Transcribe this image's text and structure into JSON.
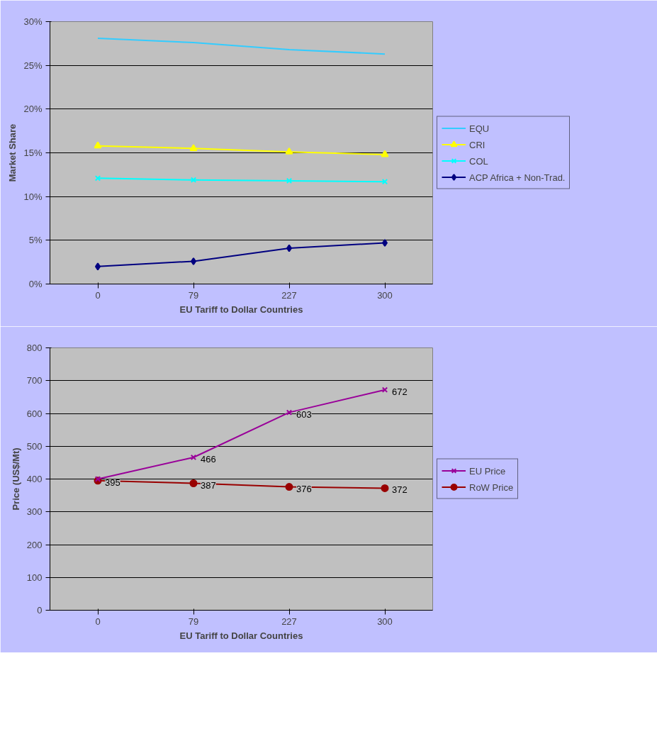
{
  "chart_data": [
    {
      "type": "line",
      "categories": [
        "0",
        "79",
        "227",
        "300"
      ],
      "xlabel": "EU Tariff to Dollar Countries",
      "ylabel": "Market Share",
      "ylim": [
        0,
        30
      ],
      "yticks": [
        {
          "value": 0,
          "label": "0%"
        },
        {
          "value": 5,
          "label": "5%"
        },
        {
          "value": 10,
          "label": "10%"
        },
        {
          "value": 15,
          "label": "15%"
        },
        {
          "value": 20,
          "label": "20%"
        },
        {
          "value": 25,
          "label": "25%"
        },
        {
          "value": 30,
          "label": "30%"
        }
      ],
      "grid": "y",
      "legend": "right",
      "series": [
        {
          "name": "EQU",
          "color": "#33ccff",
          "marker": "none",
          "values": [
            28.1,
            27.6,
            26.8,
            26.3
          ]
        },
        {
          "name": "CRI",
          "color": "#ffff00",
          "marker": "triangle",
          "values": [
            15.8,
            15.5,
            15.1,
            14.8
          ]
        },
        {
          "name": "COL",
          "color": "#00ffff",
          "marker": "cross",
          "values": [
            12.1,
            11.9,
            11.8,
            11.7
          ]
        },
        {
          "name": "ACP Africa + Non-Trad.",
          "color": "#000080",
          "marker": "diamond",
          "values": [
            2.0,
            2.6,
            4.1,
            4.7
          ]
        }
      ]
    },
    {
      "type": "line",
      "categories": [
        "0",
        "79",
        "227",
        "300"
      ],
      "xlabel": "EU Tariff to Dollar Countries",
      "ylabel": "Price (US$/Mt)",
      "ylim": [
        0,
        800
      ],
      "yticks": [
        0,
        100,
        200,
        300,
        400,
        500,
        600,
        700,
        800
      ],
      "grid": "y",
      "legend": "right",
      "series": [
        {
          "name": "EU Price",
          "color": "#990099",
          "marker": "cross",
          "values": [
            400,
            466,
            603,
            672
          ],
          "value_labels": [
            null,
            "466",
            "603",
            "672"
          ]
        },
        {
          "name": "RoW Price",
          "color": "#990000",
          "marker": "circle",
          "values": [
            395,
            387,
            376,
            372
          ],
          "value_labels": [
            "395",
            "387",
            "376",
            "372"
          ]
        }
      ]
    }
  ]
}
